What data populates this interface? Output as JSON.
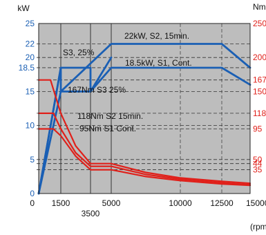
{
  "chart_data": {
    "type": "line",
    "title": "",
    "xlabel": "(rpm)",
    "ylabel_left": "kW",
    "ylabel_right": "Nm",
    "xlim": [
      0,
      15000
    ],
    "ylim_left": [
      0,
      25
    ],
    "ylim_right": [
      0,
      250
    ],
    "grid": true,
    "colors": {
      "power": "#1a5fb4",
      "torque": "#e0201a",
      "plot_bg": "#bdbdbd"
    },
    "x_ticks": [
      {
        "value": 0,
        "label": "0"
      },
      {
        "value": 1500,
        "label": "1500"
      },
      {
        "value": 3500,
        "label": "3500"
      },
      {
        "value": 5000,
        "label": "5000"
      },
      {
        "value": 10000,
        "label": "10000"
      },
      {
        "value": 12500,
        "label": "12500"
      },
      {
        "value": 15000,
        "label": "15000"
      }
    ],
    "left_ticks": [
      {
        "value": 0,
        "label": "0"
      },
      {
        "value": 5,
        "label": "5"
      },
      {
        "value": 10,
        "label": "10"
      },
      {
        "value": 15,
        "label": "15"
      },
      {
        "value": 18.5,
        "label": "18.5"
      },
      {
        "value": 20,
        "label": "20"
      },
      {
        "value": 22,
        "label": "22"
      },
      {
        "value": 25,
        "label": "25"
      }
    ],
    "right_ticks": [
      {
        "value": 250,
        "label": "250"
      },
      {
        "value": 200,
        "label": "200"
      },
      {
        "value": 167,
        "label": "167"
      },
      {
        "value": 150,
        "label": "150"
      },
      {
        "value": 118,
        "label": "118"
      },
      {
        "value": 95,
        "label": "95"
      },
      {
        "value": 50,
        "label": "50"
      },
      {
        "value": 44,
        "label": "44"
      },
      {
        "value": 35,
        "label": "35"
      }
    ],
    "reference_lines_kW": [
      22,
      20,
      18.5,
      15,
      10,
      5
    ],
    "reference_lines_Nm": [
      167,
      118,
      95,
      44,
      35
    ],
    "series": [
      {
        "name": "S3, 25%",
        "axis": "left",
        "x": [
          0,
          1500,
          3500,
          3500,
          5000
        ],
        "y": [
          0,
          18.5,
          18.5,
          15,
          20
        ]
      },
      {
        "name": "22kW, S2, 15min.",
        "axis": "left",
        "x": [
          0,
          1500,
          1500,
          5000,
          12500,
          15000
        ],
        "y": [
          0,
          18.5,
          15,
          22,
          22,
          18.5
        ]
      },
      {
        "name": "18.5kW, S1, Cont.",
        "axis": "left",
        "x": [
          0,
          1500,
          3500,
          5000,
          12500,
          15000
        ],
        "y": [
          0,
          15,
          15,
          18.5,
          18.5,
          16
        ]
      },
      {
        "name": "167Nm S3 25%",
        "axis": "right",
        "x": [
          0,
          800,
          1500,
          2500,
          3500,
          5000,
          7500,
          10000,
          12500,
          15000
        ],
        "y": [
          167,
          167,
          118,
          70,
          44,
          44,
          31,
          23,
          18,
          15
        ]
      },
      {
        "name": "118Nm S2 15min.",
        "axis": "right",
        "x": [
          0,
          1000,
          1500,
          2500,
          3500,
          5000,
          7500,
          10000,
          12500,
          15000
        ],
        "y": [
          118,
          118,
          95,
          60,
          40,
          40,
          28,
          21,
          16,
          13
        ]
      },
      {
        "name": "95Nm S1 Cont.",
        "axis": "right",
        "x": [
          0,
          1000,
          1500,
          2500,
          3500,
          5000,
          7500,
          10000,
          12500,
          15000
        ],
        "y": [
          95,
          95,
          85,
          55,
          35,
          35,
          25,
          19,
          14,
          12
        ]
      }
    ]
  }
}
